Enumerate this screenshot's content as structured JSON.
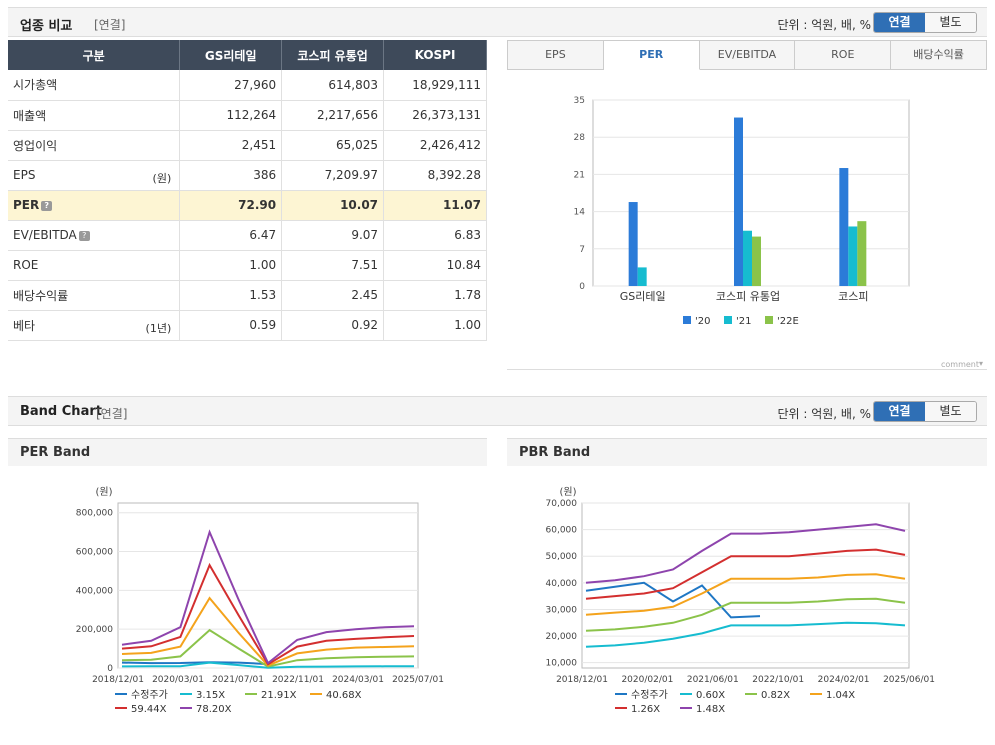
{
  "compare": {
    "title": "업종 비교",
    "sub": "[연결]",
    "unit": "단위 : 억원, 배, %",
    "btn_on": "연결",
    "btn_off": "별도",
    "headers": [
      "구분",
      "GS리테일",
      "코스피 유통업",
      "KOSPI"
    ],
    "rows": [
      {
        "label": "시가총액",
        "unit": "",
        "values": [
          "27,960",
          "614,803",
          "18,929,111"
        ]
      },
      {
        "label": "매출액",
        "unit": "",
        "values": [
          "112,264",
          "2,217,656",
          "26,373,131"
        ]
      },
      {
        "label": "영업이익",
        "unit": "",
        "values": [
          "2,451",
          "65,025",
          "2,426,412"
        ]
      },
      {
        "label": "EPS",
        "unit": "(원)",
        "values": [
          "386",
          "7,209.97",
          "8,392.28"
        ]
      },
      {
        "label": "PER",
        "unit": "",
        "values": [
          "72.90",
          "10.07",
          "11.07"
        ]
      },
      {
        "label": "EV/EBITDA",
        "unit": "",
        "values": [
          "6.47",
          "9.07",
          "6.83"
        ]
      },
      {
        "label": "ROE",
        "unit": "",
        "values": [
          "1.00",
          "7.51",
          "10.84"
        ]
      },
      {
        "label": "배당수익률",
        "unit": "",
        "values": [
          "1.53",
          "2.45",
          "1.78"
        ]
      },
      {
        "label": "베타",
        "unit": "(1년)",
        "values": [
          "0.59",
          "0.92",
          "1.00"
        ]
      }
    ],
    "tabs": [
      "EPS",
      "PER",
      "EV/EBITDA",
      "ROE",
      "배당수익률"
    ],
    "comment": "comment"
  },
  "band": {
    "title": "Band Chart",
    "sub": "[연결]",
    "unit": "단위 : 억원, 배, %",
    "btn_on": "연결",
    "btn_off": "별도",
    "per_title": "PER Band",
    "pbr_title": "PBR Band"
  },
  "chart_data": [
    {
      "type": "bar",
      "categories": [
        "GS리테일",
        "코스피 유통업",
        "코스피"
      ],
      "series": [
        {
          "name": "'20",
          "values": [
            15.8,
            31.7,
            22.2
          ],
          "color": "#2b7bd8"
        },
        {
          "name": "'21",
          "values": [
            3.5,
            10.4,
            11.2
          ],
          "color": "#16bcd0"
        },
        {
          "name": "'22E",
          "values": [
            null,
            9.3,
            12.2
          ],
          "color": "#8bc34a"
        }
      ],
      "ylim": [
        0,
        35
      ],
      "yticks": [
        0,
        7,
        14,
        21,
        28,
        35
      ],
      "legend": "bottom"
    },
    {
      "type": "line",
      "ylabel": "(원)",
      "ylim": [
        0,
        850000
      ],
      "yticks": [
        "0",
        "200,000",
        "400,000",
        "600,000",
        "800,000"
      ],
      "xticks": [
        "2018/12/01",
        "2020/03/01",
        "2021/07/01",
        "2022/11/01",
        "2024/03/01",
        "2025/07/01"
      ],
      "x": [
        "2018/12",
        "2020/03",
        "2020/12",
        "2021/07",
        "2022/03",
        "2022/11",
        "2023/07",
        "2024/03",
        "2024/11",
        "2025/07",
        "2026/01"
      ],
      "series": [
        {
          "name": "수정주가",
          "color": "#1f77c4",
          "values": [
            28000,
            25000,
            26000,
            30000,
            28000,
            20000,
            null,
            null,
            null,
            null,
            null
          ]
        },
        {
          "name": "3.15X",
          "color": "#16bcd0",
          "values": [
            8000,
            8500,
            9000,
            28000,
            15000,
            1000,
            6000,
            7000,
            8000,
            8500,
            9000
          ]
        },
        {
          "name": "21.91X",
          "color": "#8bc34a",
          "values": [
            40000,
            42000,
            60000,
            195000,
            100000,
            7000,
            40000,
            50000,
            55000,
            58000,
            60000
          ]
        },
        {
          "name": "40.68X",
          "color": "#f4a31c",
          "values": [
            72000,
            78000,
            110000,
            360000,
            180000,
            13000,
            75000,
            95000,
            105000,
            108000,
            112000
          ]
        },
        {
          "name": "59.44X",
          "color": "#d32f2f",
          "values": [
            100000,
            112000,
            160000,
            530000,
            270000,
            19000,
            110000,
            140000,
            150000,
            158000,
            165000
          ]
        },
        {
          "name": "78.20X",
          "color": "#8e44ad",
          "values": [
            120000,
            140000,
            210000,
            700000,
            350000,
            25000,
            145000,
            185000,
            200000,
            210000,
            215000
          ]
        }
      ],
      "legend": "bottom"
    },
    {
      "type": "line",
      "ylabel": "(원)",
      "ylim": [
        8000,
        70000
      ],
      "yticks": [
        "10,000",
        "20,000",
        "30,000",
        "40,000",
        "50,000",
        "60,000",
        "70,000"
      ],
      "xticks": [
        "2018/12/01",
        "2020/02/01",
        "2021/06/01",
        "2022/10/01",
        "2024/02/01",
        "2025/06/01"
      ],
      "x": [
        "2018/12",
        "2019/06",
        "2020/02",
        "2020/10",
        "2021/06",
        "2022/02",
        "2022/10",
        "2023/06",
        "2024/02",
        "2024/10",
        "2025/06",
        "2026/01"
      ],
      "series": [
        {
          "name": "수정주가",
          "color": "#1f77c4",
          "values": [
            37000,
            38500,
            40000,
            33000,
            39000,
            27000,
            27500,
            null,
            null,
            null,
            null,
            null
          ]
        },
        {
          "name": "0.60X",
          "color": "#16bcd0",
          "values": [
            16000,
            16500,
            17500,
            19000,
            21000,
            24000,
            24000,
            24000,
            24500,
            25000,
            24800,
            24000
          ]
        },
        {
          "name": "0.82X",
          "color": "#8bc34a",
          "values": [
            22000,
            22500,
            23500,
            25000,
            28000,
            32500,
            32500,
            32500,
            33000,
            33800,
            34000,
            32500
          ]
        },
        {
          "name": "1.04X",
          "color": "#f4a31c",
          "values": [
            28000,
            28800,
            29500,
            31000,
            36000,
            41500,
            41500,
            41500,
            42000,
            43000,
            43200,
            41500
          ]
        },
        {
          "name": "1.26X",
          "color": "#d32f2f",
          "values": [
            34000,
            35000,
            36000,
            38000,
            44000,
            50000,
            50000,
            50000,
            51000,
            52000,
            52500,
            50500
          ]
        },
        {
          "name": "1.48X",
          "color": "#8e44ad",
          "values": [
            40000,
            41000,
            42500,
            45000,
            52000,
            58500,
            58500,
            59000,
            60000,
            61000,
            62000,
            59500
          ]
        }
      ],
      "legend": "bottom"
    }
  ]
}
